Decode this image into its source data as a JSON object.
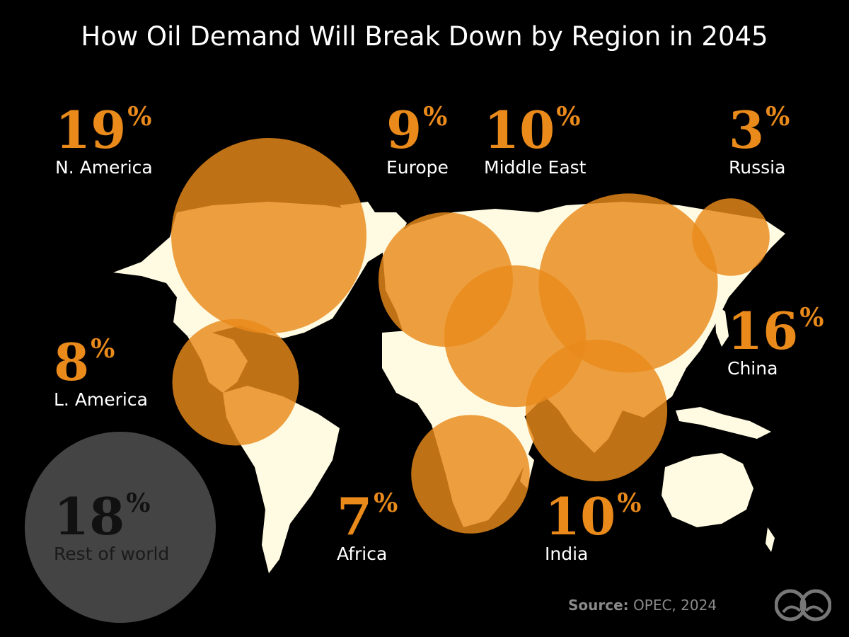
{
  "title": "How Oil Demand Will Break Down by Region in 2045",
  "colors": {
    "bubble": "#E98A1B",
    "land": "#FFFBE3",
    "background": "#000000",
    "rest_circle": "#444444"
  },
  "chart_data": {
    "type": "bubble-map",
    "title": "How Oil Demand Will Break Down by Region in 2045",
    "unit": "%",
    "regions": [
      {
        "name": "N. America",
        "value": 19,
        "pct": "%"
      },
      {
        "name": "Europe",
        "value": 9,
        "pct": "%"
      },
      {
        "name": "Middle East",
        "value": 10,
        "pct": "%"
      },
      {
        "name": "Russia",
        "value": 3,
        "pct": "%"
      },
      {
        "name": "China",
        "value": 16,
        "pct": "%"
      },
      {
        "name": "L. America",
        "value": 8,
        "pct": "%"
      },
      {
        "name": "Africa",
        "value": 7,
        "pct": "%"
      },
      {
        "name": "India",
        "value": 10,
        "pct": "%"
      },
      {
        "name": "Rest of world",
        "value": 18,
        "pct": "%"
      }
    ]
  },
  "source": {
    "label": "Source:",
    "text": " OPEC, 2024"
  },
  "logo": "binoculars-logo-icon"
}
